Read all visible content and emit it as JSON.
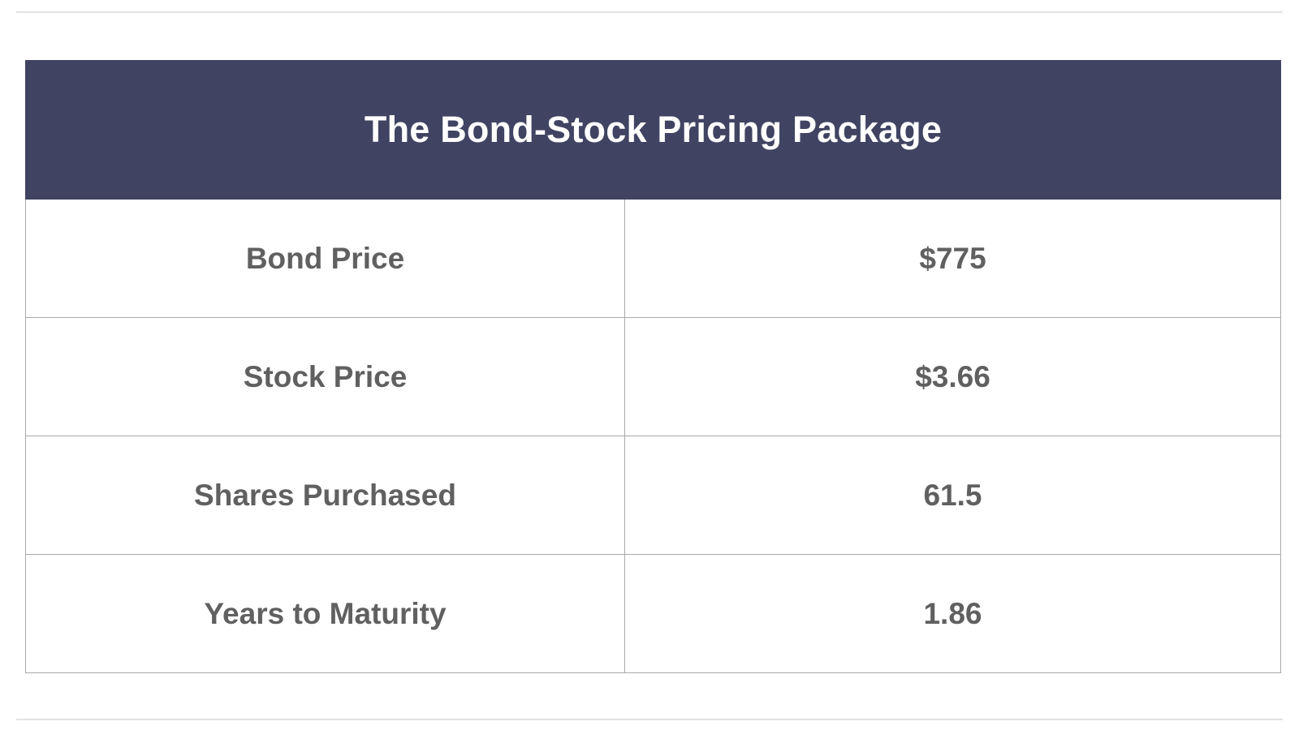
{
  "table": {
    "title": "The Bond-Stock Pricing Package",
    "rows": [
      {
        "label": "Bond Price",
        "value": "$775"
      },
      {
        "label": "Stock Price",
        "value": "$3.66"
      },
      {
        "label": "Shares Purchased",
        "value": "61.5"
      },
      {
        "label": "Years to Maturity",
        "value": "1.86"
      }
    ]
  },
  "colors": {
    "header_background": "#404462",
    "header_text": "#ffffff",
    "cell_text": "#606060",
    "border": "#a9a9a9"
  }
}
